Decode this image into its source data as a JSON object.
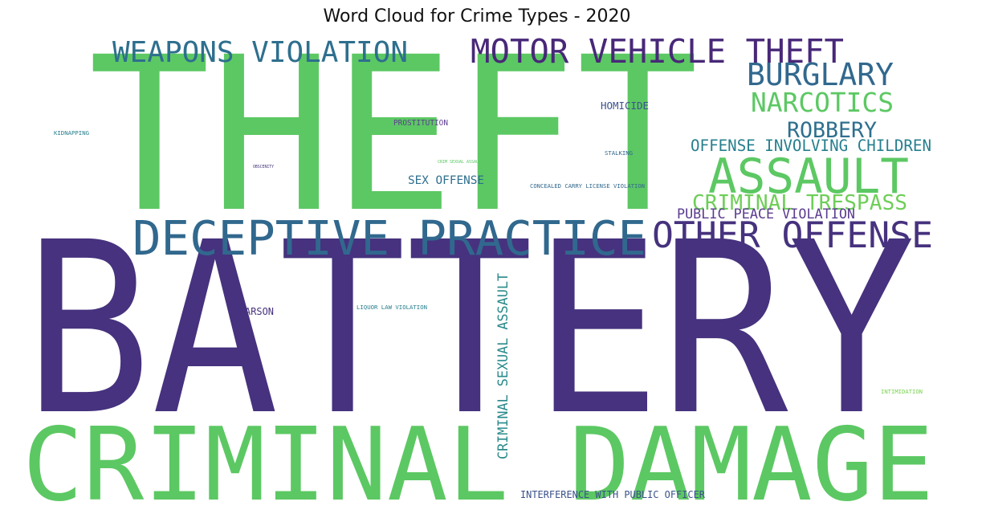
{
  "chart_data": {
    "type": "wordcloud",
    "title": "Word Cloud for Crime Types - 2020",
    "palette": {
      "green": "#5cc863",
      "purple": "#46327e",
      "teal": "#365c8d",
      "cyan": "#277f8e",
      "lime": "#7ad151"
    },
    "words": [
      {
        "text": "BATTERY",
        "color": "#46327e"
      },
      {
        "text": "THEFT",
        "color": "#5cc863"
      },
      {
        "text": "CRIMINAL DAMAGE",
        "color": "#5cc863"
      },
      {
        "text": "DECEPTIVE PRACTICE",
        "color": "#31688e"
      },
      {
        "text": "ASSAULT",
        "color": "#5cc863"
      },
      {
        "text": "OTHER OFFENSE",
        "color": "#46327e"
      },
      {
        "text": "MOTOR VEHICLE THEFT",
        "color": "#482878"
      },
      {
        "text": "WEAPONS VIOLATION",
        "color": "#2e6f8e"
      },
      {
        "text": "BURGLARY",
        "color": "#31688e"
      },
      {
        "text": "NARCOTICS",
        "color": "#5cc863"
      },
      {
        "text": "ROBBERY",
        "color": "#2e6f8e"
      },
      {
        "text": "CRIMINAL TRESPASS",
        "color": "#6ece58"
      },
      {
        "text": "OFFENSE INVOLVING CHILDREN",
        "color": "#277f8e"
      },
      {
        "text": "PUBLIC PEACE VIOLATION",
        "color": "#5b3c8f"
      },
      {
        "text": "CRIMINAL SEXUAL ASSAULT",
        "color": "#2a8a8a"
      },
      {
        "text": "SEX OFFENSE",
        "color": "#2e6f8e"
      },
      {
        "text": "INTERFERENCE WITH PUBLIC OFFICER",
        "color": "#3b528b"
      },
      {
        "text": "HOMICIDE",
        "color": "#3b528b"
      },
      {
        "text": "ARSON",
        "color": "#46327e"
      },
      {
        "text": "PROSTITUTION",
        "color": "#5b3c8f"
      },
      {
        "text": "STALKING",
        "color": "#31688e"
      },
      {
        "text": "CONCEALED CARRY LICENSE VIOLATION",
        "color": "#31688e"
      },
      {
        "text": "LIQUOR LAW VIOLATION",
        "color": "#277f8e"
      },
      {
        "text": "KIDNAPPING",
        "color": "#277f8e"
      },
      {
        "text": "INTIMIDATION",
        "color": "#7ad151"
      },
      {
        "text": "CRIM SEXUAL ASSAULT",
        "color": "#5cc863"
      },
      {
        "text": "OBSCENITY",
        "color": "#46327e"
      }
    ]
  }
}
